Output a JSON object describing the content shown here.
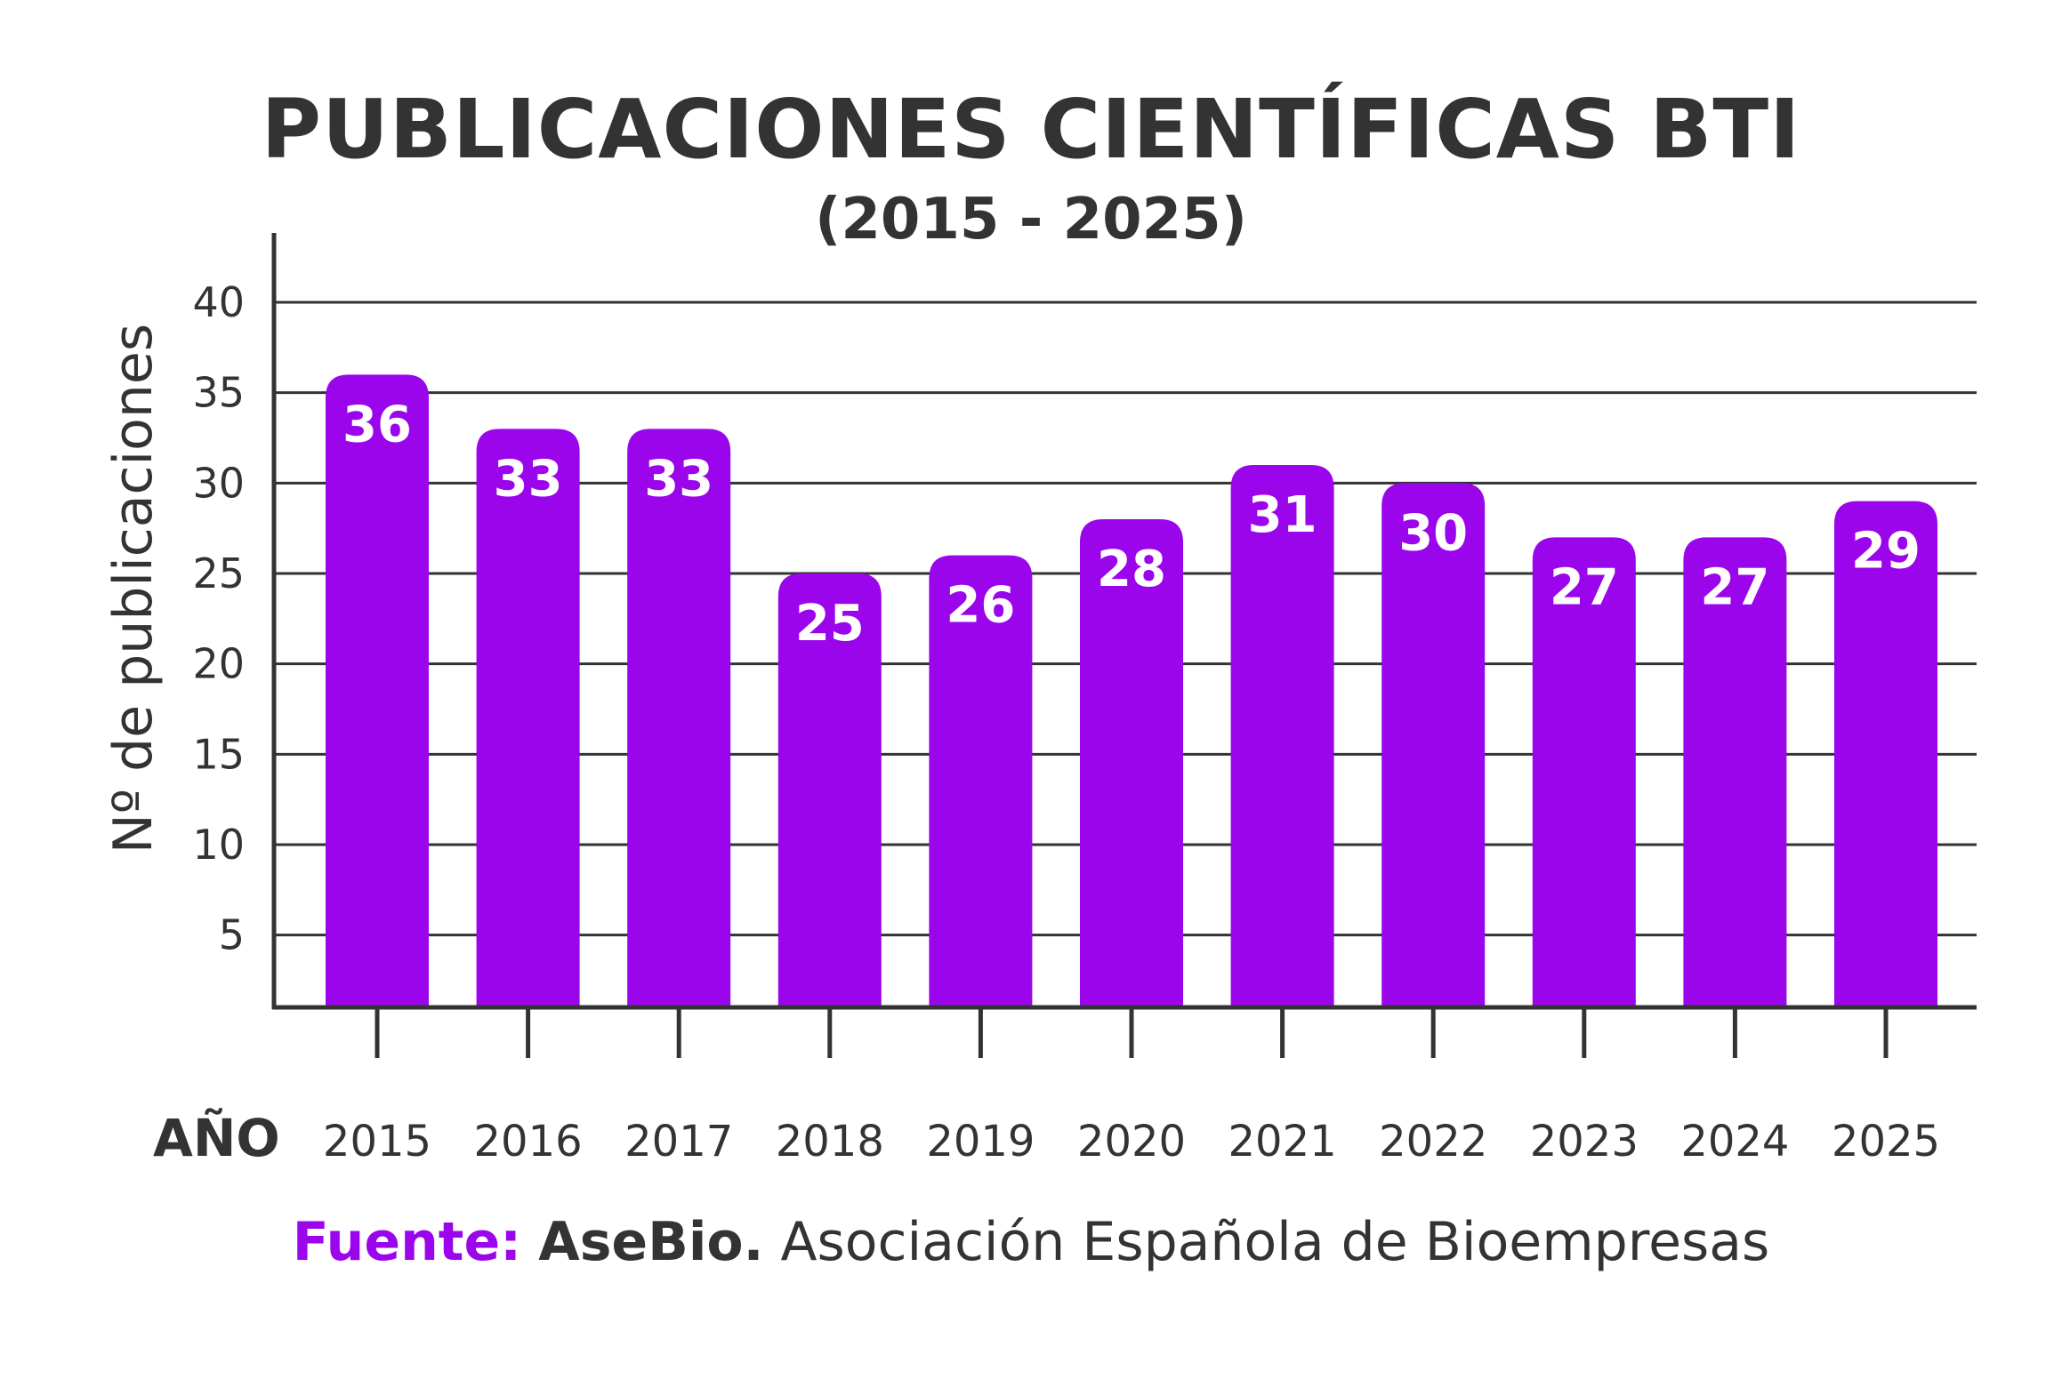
{
  "header": {
    "title": "PUBLICACIONES CIENTÍFICAS BTI",
    "subtitle": "(2015 - 2025)"
  },
  "source": {
    "label": "Fuente:",
    "org": "AseBio.",
    "text": "Asociación Española de Bioempresas"
  },
  "colors": {
    "bar": "#9b05eb",
    "text": "#333333",
    "grid": "#333333",
    "data_label": "#ffffff"
  },
  "chart_data": {
    "type": "bar",
    "xlabel": "AÑO",
    "ylabel": "Nº de publicaciones",
    "categories": [
      "2015",
      "2016",
      "2017",
      "2018",
      "2019",
      "2020",
      "2021",
      "2022",
      "2023",
      "2024",
      "2025"
    ],
    "values": [
      36,
      33,
      33,
      25,
      26,
      28,
      31,
      30,
      27,
      27,
      29
    ],
    "yticks": [
      5,
      10,
      15,
      20,
      25,
      30,
      35,
      40
    ],
    "ylim": [
      1,
      40
    ],
    "grid": true,
    "data_labels": true
  }
}
